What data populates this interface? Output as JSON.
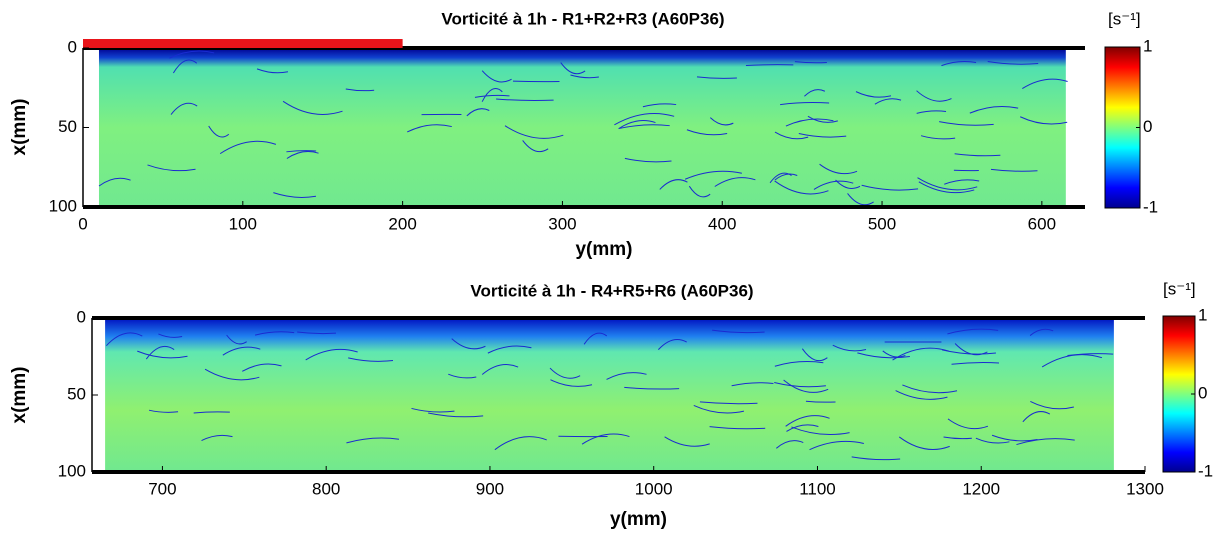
{
  "chart_data": [
    {
      "type": "heatmap",
      "title": "Vorticité à 1h - R1+R2+R3 (A60P36)",
      "xlabel": "y(mm)",
      "ylabel": "x(mm)",
      "xlim": [
        0,
        627
      ],
      "ylim": [
        0,
        100
      ],
      "xticks": [
        0,
        100,
        200,
        300,
        400,
        500,
        600
      ],
      "yticks": [
        0,
        50,
        100
      ],
      "data_extent": [
        10,
        615
      ],
      "highlight_range": [
        0,
        200
      ],
      "highlight_color": "#e8141a",
      "colorbar_label": "[s⁻¹]",
      "clim": [
        -1,
        1
      ],
      "cticks": [
        -1,
        0,
        1
      ],
      "colormap": "jet"
    },
    {
      "type": "heatmap",
      "title": "Vorticité à 1h - R4+R5+R6 (A60P36)",
      "xlabel": "y(mm)",
      "ylabel": "x(mm)",
      "xlim": [
        657,
        1300
      ],
      "ylim": [
        0,
        100
      ],
      "xticks": [
        700,
        800,
        900,
        1000,
        1100,
        1200,
        1300
      ],
      "yticks": [
        0,
        50,
        100
      ],
      "data_extent": [
        665,
        1281
      ],
      "colorbar_label": "[s⁻¹]",
      "clim": [
        -1,
        1
      ],
      "cticks": [
        -1,
        0,
        1
      ],
      "colormap": "jet"
    }
  ]
}
